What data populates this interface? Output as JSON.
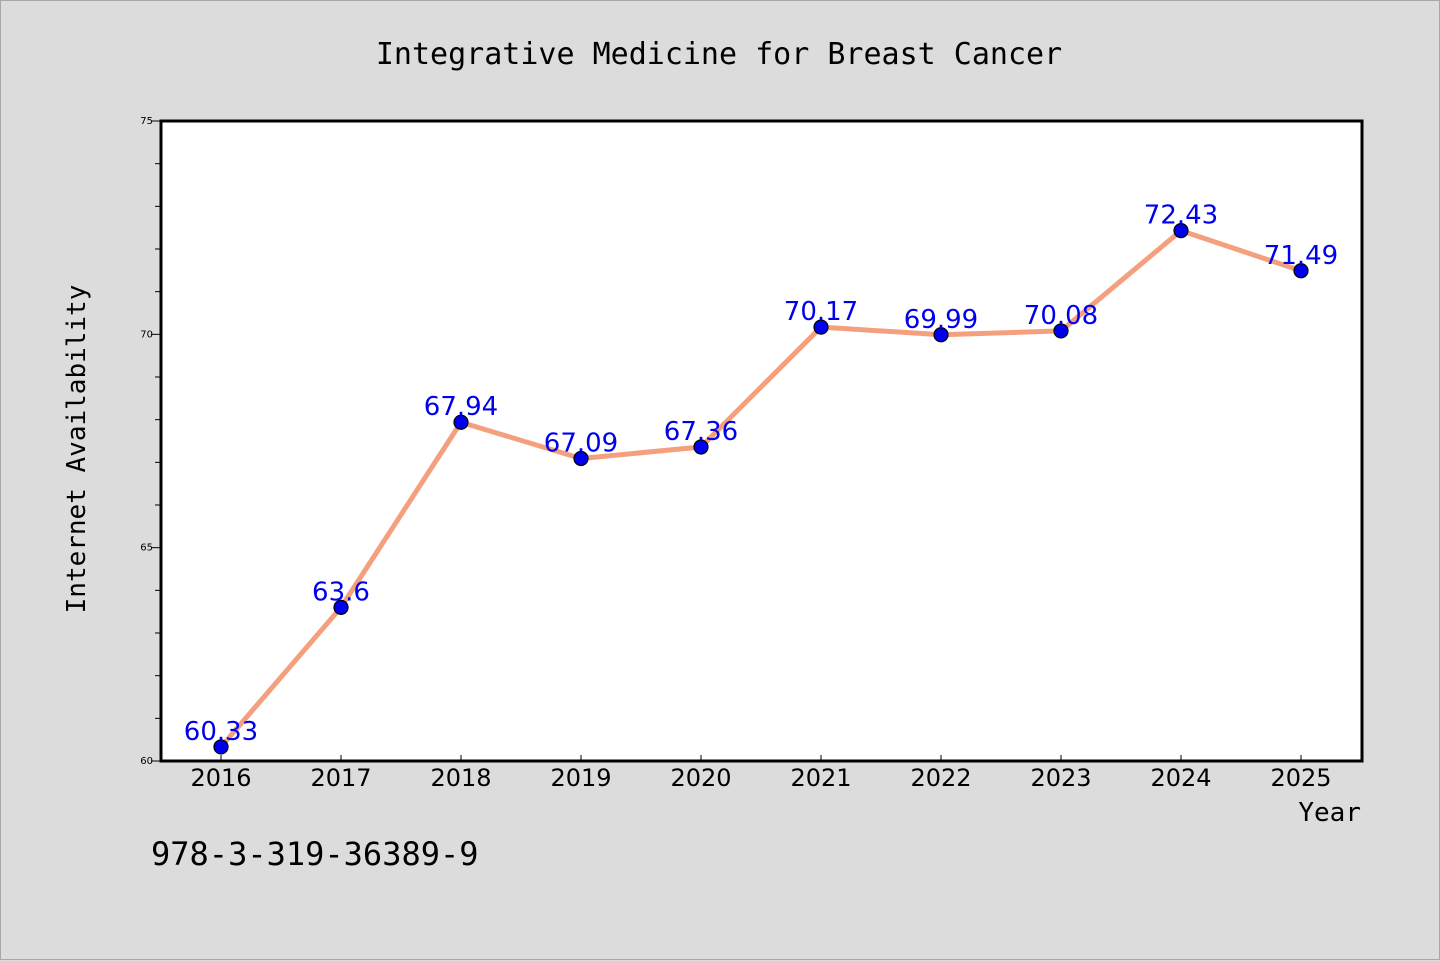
{
  "footer_text": "978-3-319-36389-9",
  "chart_data": {
    "type": "line",
    "title": "Integrative Medicine for Breast Cancer",
    "xlabel": "Year",
    "ylabel": "Internet Availability",
    "categories": [
      "2016",
      "2017",
      "2018",
      "2019",
      "2020",
      "2021",
      "2022",
      "2023",
      "2024",
      "2025"
    ],
    "series": [
      {
        "values": [
          60.33,
          63.6,
          67.94,
          67.09,
          67.36,
          70.17,
          69.99,
          70.08,
          72.43,
          71.49
        ],
        "labels": [
          "60.33",
          "63.6",
          "67.94",
          "67.09",
          "67.36",
          "70.17",
          "69.99",
          "70.08",
          "72.43",
          "71.49"
        ],
        "line_color": "#f4a07e",
        "marker_color": "#0000ee",
        "label_color": "#0000ee"
      }
    ],
    "ylim": [
      60,
      75
    ],
    "yticks": [
      "60",
      "65",
      "70",
      "75"
    ],
    "grid": false,
    "legend": "none"
  }
}
